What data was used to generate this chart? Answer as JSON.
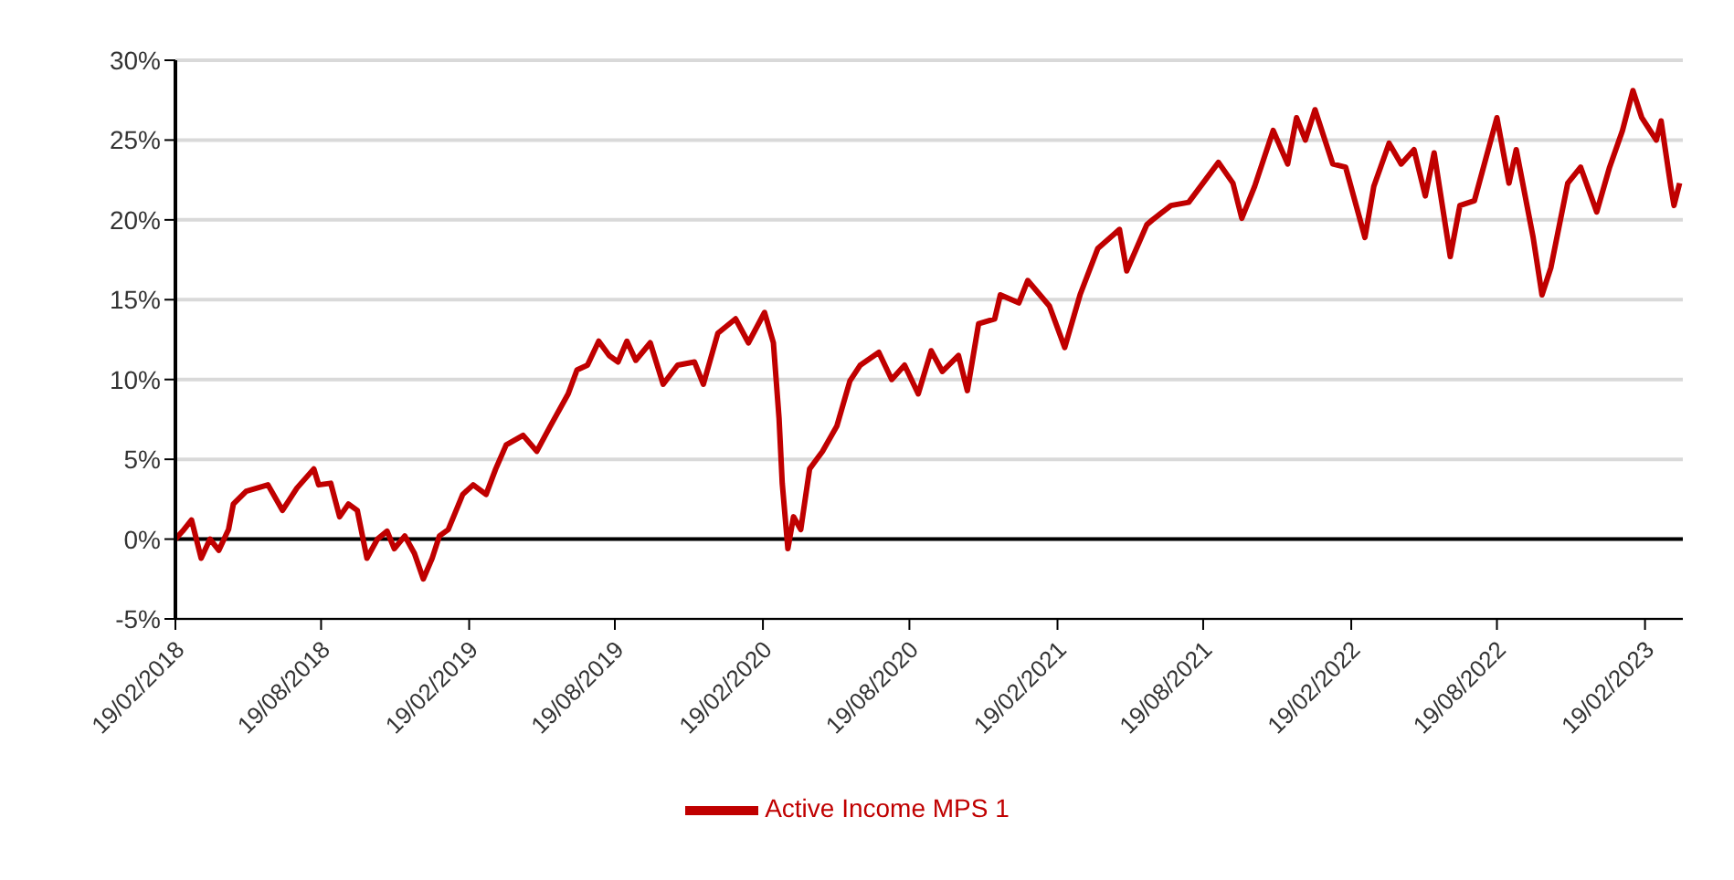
{
  "chart_data": {
    "type": "line",
    "x": [
      "2018-02-19",
      "2018-02-28",
      "2018-03-11",
      "2018-03-23",
      "2018-04-03",
      "2018-04-14",
      "2018-04-26",
      "2018-05-02",
      "2018-05-18",
      "2018-06-14",
      "2018-07-02",
      "2018-07-20",
      "2018-08-10",
      "2018-08-16",
      "2018-08-31",
      "2018-09-11",
      "2018-09-22",
      "2018-10-03",
      "2018-10-15",
      "2018-10-28",
      "2018-11-09",
      "2018-11-18",
      "2018-12-01",
      "2018-12-13",
      "2018-12-24",
      "2019-01-04",
      "2019-01-13",
      "2019-01-24",
      "2019-02-11",
      "2019-02-24",
      "2019-03-12",
      "2019-03-24",
      "2019-04-06",
      "2019-04-27",
      "2019-05-14",
      "2019-05-30",
      "2019-06-22",
      "2019-07-03",
      "2019-07-16",
      "2019-07-30",
      "2019-08-12",
      "2019-08-23",
      "2019-09-03",
      "2019-09-14",
      "2019-10-02",
      "2019-10-18",
      "2019-11-05",
      "2019-11-26",
      "2019-12-07",
      "2019-12-25",
      "2020-01-16",
      "2020-02-01",
      "2020-02-21",
      "2020-03-03",
      "2020-03-10",
      "2020-03-14",
      "2020-03-21",
      "2020-03-28",
      "2020-04-06",
      "2020-04-17",
      "2020-05-03",
      "2020-05-21",
      "2020-06-06",
      "2020-06-19",
      "2020-07-12",
      "2020-07-28",
      "2020-08-13",
      "2020-08-30",
      "2020-09-15",
      "2020-09-29",
      "2020-10-19",
      "2020-10-30",
      "2020-11-13",
      "2020-12-03",
      "2020-12-10",
      "2021-01-02",
      "2021-01-13",
      "2021-02-09",
      "2021-02-28",
      "2021-03-19",
      "2021-04-10",
      "2021-05-07",
      "2021-05-16",
      "2021-06-10",
      "2021-06-17",
      "2021-07-10",
      "2021-08-01",
      "2021-09-07",
      "2021-09-25",
      "2021-10-06",
      "2021-10-22",
      "2021-11-14",
      "2021-12-02",
      "2021-12-13",
      "2021-12-24",
      "2022-01-05",
      "2022-01-27",
      "2022-02-12",
      "2022-03-08",
      "2022-03-19",
      "2022-04-07",
      "2022-04-22",
      "2022-05-08",
      "2022-05-22",
      "2022-06-02",
      "2022-06-22",
      "2022-07-04",
      "2022-07-22",
      "2022-08-19",
      "2022-09-03",
      "2022-09-12",
      "2022-10-03",
      "2022-10-14",
      "2022-10-25",
      "2022-11-15",
      "2022-12-01",
      "2022-12-21",
      "2023-01-06",
      "2023-01-22",
      "2023-02-04",
      "2023-02-15",
      "2023-03-05",
      "2023-03-11",
      "2023-03-23",
      "2023-03-27",
      "2023-04-03"
    ],
    "series": [
      {
        "name": "Active Income MPS 1",
        "color": "#c00000",
        "values": [
          0.0,
          0.5,
          1.2,
          -1.2,
          0.0,
          -0.7,
          0.6,
          2.2,
          3.0,
          3.4,
          1.8,
          3.2,
          4.4,
          3.4,
          3.5,
          1.4,
          2.2,
          1.8,
          -1.2,
          0.0,
          0.5,
          -0.6,
          0.2,
          -0.9,
          -2.5,
          -1.2,
          0.2,
          0.6,
          2.8,
          3.4,
          2.8,
          4.4,
          5.9,
          6.5,
          5.5,
          7.0,
          9.1,
          10.6,
          10.9,
          12.4,
          11.5,
          11.1,
          12.4,
          11.2,
          12.3,
          9.7,
          10.9,
          11.1,
          9.7,
          12.9,
          13.8,
          12.3,
          14.2,
          12.3,
          7.6,
          3.5,
          -0.6,
          1.4,
          0.6,
          4.4,
          5.5,
          7.1,
          9.9,
          10.9,
          11.7,
          10.0,
          10.9,
          9.1,
          11.8,
          10.5,
          11.5,
          9.3,
          13.5,
          13.8,
          15.3,
          14.8,
          16.2,
          14.6,
          12.0,
          15.3,
          18.2,
          19.4,
          16.8,
          19.7,
          20.0,
          20.9,
          21.1,
          23.6,
          22.3,
          20.1,
          22.1,
          25.6,
          23.5,
          26.4,
          25.0,
          26.9,
          23.5,
          23.3,
          18.9,
          22.1,
          24.8,
          23.5,
          24.4,
          21.5,
          24.2,
          17.7,
          20.9,
          21.2,
          26.4,
          22.3,
          24.4,
          18.9,
          15.3,
          17.0,
          22.3,
          23.3,
          20.5,
          23.3,
          25.6,
          28.1,
          26.4,
          25.0,
          26.2,
          22.1,
          20.9,
          22.3
        ]
      }
    ],
    "xlim": [
      "2018-02-19",
      "2023-04-07"
    ],
    "xticks": [
      {
        "value": "2018-02-19",
        "label": "19/02/2018"
      },
      {
        "value": "2018-08-19",
        "label": "19/08/2018"
      },
      {
        "value": "2019-02-19",
        "label": "19/02/2019"
      },
      {
        "value": "2019-08-19",
        "label": "19/08/2019"
      },
      {
        "value": "2020-02-19",
        "label": "19/02/2020"
      },
      {
        "value": "2020-08-19",
        "label": "19/08/2020"
      },
      {
        "value": "2021-02-19",
        "label": "19/02/2021"
      },
      {
        "value": "2021-08-19",
        "label": "19/08/2021"
      },
      {
        "value": "2022-02-19",
        "label": "19/02/2022"
      },
      {
        "value": "2022-08-19",
        "label": "19/08/2022"
      },
      {
        "value": "2023-02-19",
        "label": "19/02/2023"
      }
    ],
    "ylim": [
      -5,
      30
    ],
    "yticks": [
      {
        "value": -5,
        "label": "-5%"
      },
      {
        "value": 0,
        "label": "0%"
      },
      {
        "value": 5,
        "label": "5%"
      },
      {
        "value": 10,
        "label": "10%"
      },
      {
        "value": 15,
        "label": "15%"
      },
      {
        "value": 20,
        "label": "20%"
      },
      {
        "value": 25,
        "label": "25%"
      },
      {
        "value": 30,
        "label": "30%"
      }
    ],
    "grid": "y",
    "legend": "bottom",
    "marker": "none",
    "line_style": "solid"
  }
}
